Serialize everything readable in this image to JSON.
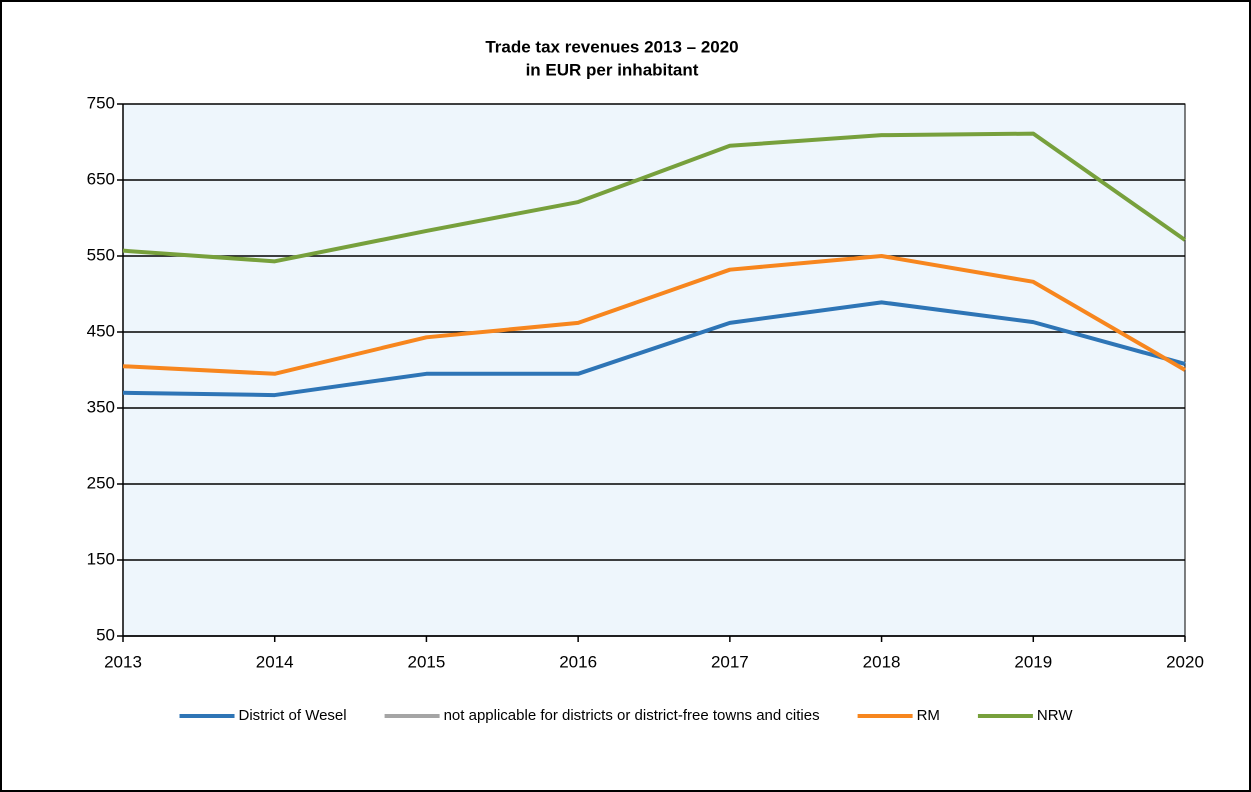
{
  "chart_data": {
    "type": "line",
    "title": "Trade tax revenues  2013 – 2020",
    "subtitle": "in EUR per inhabitant",
    "x": [
      2013,
      2014,
      2015,
      2016,
      2017,
      2018,
      2019,
      2020
    ],
    "xlim": [
      2013,
      2020
    ],
    "xticks": [
      2013,
      2014,
      2015,
      2016,
      2017,
      2018,
      2019,
      2020
    ],
    "ylim": [
      50,
      750
    ],
    "yticks": [
      50,
      150,
      250,
      350,
      450,
      550,
      650,
      750
    ],
    "grid": true,
    "legend": "bottom",
    "series": [
      {
        "name": "District of Wesel",
        "color": "#2e75b6",
        "values": [
          370,
          367,
          395,
          395,
          462,
          489,
          463,
          408
        ]
      },
      {
        "name": "not applicable for districts or district-free towns and cities",
        "color": "#a5a5a5",
        "values": [
          null,
          null,
          null,
          null,
          null,
          null,
          null,
          null
        ]
      },
      {
        "name": "RM",
        "color": "#f7861e",
        "values": [
          405,
          395,
          443,
          462,
          532,
          550,
          516,
          400
        ]
      },
      {
        "name": "NRW",
        "color": "#77a03c",
        "values": [
          557,
          543,
          583,
          621,
          695,
          709,
          711,
          571
        ]
      }
    ]
  }
}
